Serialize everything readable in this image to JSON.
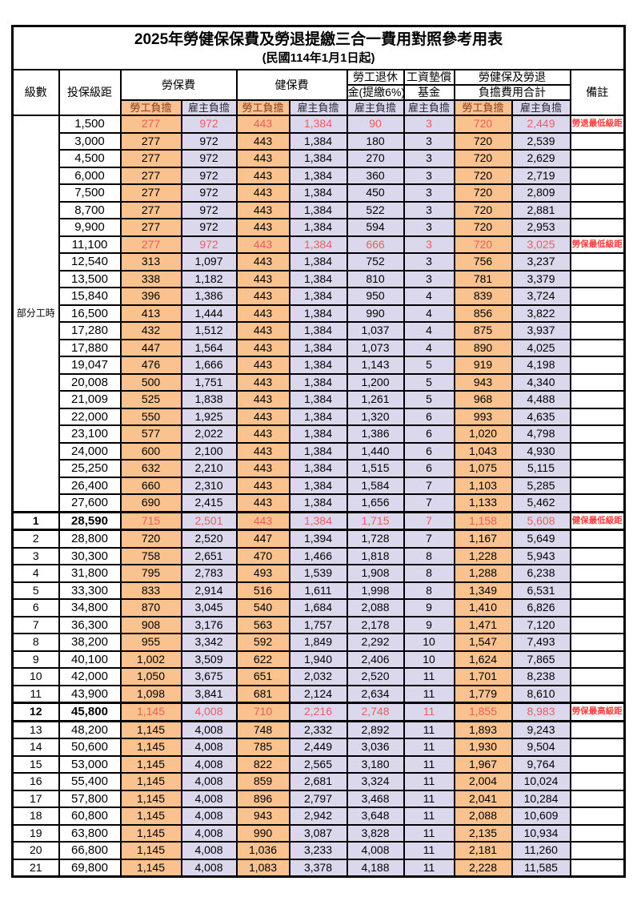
{
  "title": "2025年勞健保保費及勞退提繳三合一費用對照參考用表",
  "subtitle": "(民國114年1月1日起)",
  "header": {
    "level": "級數",
    "bracket": "投保級距",
    "labor_ins": "勞保費",
    "health_ins": "健保費",
    "pension_line1": "勞工退休",
    "pension_line2": "金(提繳6%)",
    "wage_fund_line1": "工資墊償",
    "wage_fund_line2": "基金",
    "total_line1": "勞健保及勞退",
    "total_line2": "負擔費用合計",
    "note": "備註",
    "employee_share": "勞工負擔",
    "employer_share": "雇主負擔"
  },
  "part_time_label": "部分工時",
  "colors": {
    "orange": "#F9C28E",
    "lavender": "#DBD8EE",
    "red_value": "#EE5D5D",
    "red_note": "#FB3B3B",
    "header_orange_text": "#8C3A1E",
    "header_lavender_text": "#2B2B3A",
    "border": "#000000"
  },
  "rows": [
    {
      "level": "",
      "bracket": "1,500",
      "values": [
        "277",
        "972",
        "443",
        "1,384",
        "90",
        "3",
        "720",
        "2,449"
      ],
      "note": "勞退最低級距",
      "red": true,
      "bold": false,
      "thick": false
    },
    {
      "level": "",
      "bracket": "3,000",
      "values": [
        "277",
        "972",
        "443",
        "1,384",
        "180",
        "3",
        "720",
        "2,539"
      ],
      "note": "",
      "red": false,
      "bold": false,
      "thick": false
    },
    {
      "level": "",
      "bracket": "4,500",
      "values": [
        "277",
        "972",
        "443",
        "1,384",
        "270",
        "3",
        "720",
        "2,629"
      ],
      "note": "",
      "red": false,
      "bold": false,
      "thick": false
    },
    {
      "level": "",
      "bracket": "6,000",
      "values": [
        "277",
        "972",
        "443",
        "1,384",
        "360",
        "3",
        "720",
        "2,719"
      ],
      "note": "",
      "red": false,
      "bold": false,
      "thick": false
    },
    {
      "level": "",
      "bracket": "7,500",
      "values": [
        "277",
        "972",
        "443",
        "1,384",
        "450",
        "3",
        "720",
        "2,809"
      ],
      "note": "",
      "red": false,
      "bold": false,
      "thick": false
    },
    {
      "level": "",
      "bracket": "8,700",
      "values": [
        "277",
        "972",
        "443",
        "1,384",
        "522",
        "3",
        "720",
        "2,881"
      ],
      "note": "",
      "red": false,
      "bold": false,
      "thick": false
    },
    {
      "level": "",
      "bracket": "9,900",
      "values": [
        "277",
        "972",
        "443",
        "1,384",
        "594",
        "3",
        "720",
        "2,953"
      ],
      "note": "",
      "red": false,
      "bold": false,
      "thick": false
    },
    {
      "level": "",
      "bracket": "11,100",
      "values": [
        "277",
        "972",
        "443",
        "1,384",
        "666",
        "3",
        "720",
        "3,025"
      ],
      "note": "勞保最低級距",
      "red": true,
      "bold": false,
      "thick": false
    },
    {
      "level": "",
      "bracket": "12,540",
      "values": [
        "313",
        "1,097",
        "443",
        "1,384",
        "752",
        "3",
        "756",
        "3,237"
      ],
      "note": "",
      "red": false,
      "bold": false,
      "thick": false
    },
    {
      "level": "",
      "bracket": "13,500",
      "values": [
        "338",
        "1,182",
        "443",
        "1,384",
        "810",
        "3",
        "781",
        "3,379"
      ],
      "note": "",
      "red": false,
      "bold": false,
      "thick": false
    },
    {
      "level": "",
      "bracket": "15,840",
      "values": [
        "396",
        "1,386",
        "443",
        "1,384",
        "950",
        "4",
        "839",
        "3,724"
      ],
      "note": "",
      "red": false,
      "bold": false,
      "thick": false
    },
    {
      "level": "",
      "bracket": "16,500",
      "values": [
        "413",
        "1,444",
        "443",
        "1,384",
        "990",
        "4",
        "856",
        "3,822"
      ],
      "note": "",
      "red": false,
      "bold": false,
      "thick": false
    },
    {
      "level": "",
      "bracket": "17,280",
      "values": [
        "432",
        "1,512",
        "443",
        "1,384",
        "1,037",
        "4",
        "875",
        "3,937"
      ],
      "note": "",
      "red": false,
      "bold": false,
      "thick": false
    },
    {
      "level": "",
      "bracket": "17,880",
      "values": [
        "447",
        "1,564",
        "443",
        "1,384",
        "1,073",
        "4",
        "890",
        "4,025"
      ],
      "note": "",
      "red": false,
      "bold": false,
      "thick": false
    },
    {
      "level": "",
      "bracket": "19,047",
      "values": [
        "476",
        "1,666",
        "443",
        "1,384",
        "1,143",
        "5",
        "919",
        "4,198"
      ],
      "note": "",
      "red": false,
      "bold": false,
      "thick": false
    },
    {
      "level": "",
      "bracket": "20,008",
      "values": [
        "500",
        "1,751",
        "443",
        "1,384",
        "1,200",
        "5",
        "943",
        "4,340"
      ],
      "note": "",
      "red": false,
      "bold": false,
      "thick": false
    },
    {
      "level": "",
      "bracket": "21,009",
      "values": [
        "525",
        "1,838",
        "443",
        "1,384",
        "1,261",
        "5",
        "968",
        "4,488"
      ],
      "note": "",
      "red": false,
      "bold": false,
      "thick": false
    },
    {
      "level": "",
      "bracket": "22,000",
      "values": [
        "550",
        "1,925",
        "443",
        "1,384",
        "1,320",
        "6",
        "993",
        "4,635"
      ],
      "note": "",
      "red": false,
      "bold": false,
      "thick": false
    },
    {
      "level": "",
      "bracket": "23,100",
      "values": [
        "577",
        "2,022",
        "443",
        "1,384",
        "1,386",
        "6",
        "1,020",
        "4,798"
      ],
      "note": "",
      "red": false,
      "bold": false,
      "thick": false
    },
    {
      "level": "",
      "bracket": "24,000",
      "values": [
        "600",
        "2,100",
        "443",
        "1,384",
        "1,440",
        "6",
        "1,043",
        "4,930"
      ],
      "note": "",
      "red": false,
      "bold": false,
      "thick": false
    },
    {
      "level": "",
      "bracket": "25,250",
      "values": [
        "632",
        "2,210",
        "443",
        "1,384",
        "1,515",
        "6",
        "1,075",
        "5,115"
      ],
      "note": "",
      "red": false,
      "bold": false,
      "thick": false
    },
    {
      "level": "",
      "bracket": "26,400",
      "values": [
        "660",
        "2,310",
        "443",
        "1,384",
        "1,584",
        "7",
        "1,103",
        "5,285"
      ],
      "note": "",
      "red": false,
      "bold": false,
      "thick": false
    },
    {
      "level": "",
      "bracket": "27,600",
      "values": [
        "690",
        "2,415",
        "443",
        "1,384",
        "1,656",
        "7",
        "1,133",
        "5,462"
      ],
      "note": "",
      "red": false,
      "bold": false,
      "thick": false
    },
    {
      "level": "1",
      "bracket": "28,590",
      "values": [
        "715",
        "2,501",
        "443",
        "1,384",
        "1,715",
        "7",
        "1,158",
        "5,608"
      ],
      "note": "健保最低級距",
      "red": true,
      "bold": true,
      "thick": true
    },
    {
      "level": "2",
      "bracket": "28,800",
      "values": [
        "720",
        "2,520",
        "447",
        "1,394",
        "1,728",
        "7",
        "1,167",
        "5,649"
      ],
      "note": "",
      "red": false,
      "bold": false,
      "thick": false
    },
    {
      "level": "3",
      "bracket": "30,300",
      "values": [
        "758",
        "2,651",
        "470",
        "1,466",
        "1,818",
        "8",
        "1,228",
        "5,943"
      ],
      "note": "",
      "red": false,
      "bold": false,
      "thick": false
    },
    {
      "level": "4",
      "bracket": "31,800",
      "values": [
        "795",
        "2,783",
        "493",
        "1,539",
        "1,908",
        "8",
        "1,288",
        "6,238"
      ],
      "note": "",
      "red": false,
      "bold": false,
      "thick": false
    },
    {
      "level": "5",
      "bracket": "33,300",
      "values": [
        "833",
        "2,914",
        "516",
        "1,611",
        "1,998",
        "8",
        "1,349",
        "6,531"
      ],
      "note": "",
      "red": false,
      "bold": false,
      "thick": false
    },
    {
      "level": "6",
      "bracket": "34,800",
      "values": [
        "870",
        "3,045",
        "540",
        "1,684",
        "2,088",
        "9",
        "1,410",
        "6,826"
      ],
      "note": "",
      "red": false,
      "bold": false,
      "thick": false
    },
    {
      "level": "7",
      "bracket": "36,300",
      "values": [
        "908",
        "3,176",
        "563",
        "1,757",
        "2,178",
        "9",
        "1,471",
        "7,120"
      ],
      "note": "",
      "red": false,
      "bold": false,
      "thick": false
    },
    {
      "level": "8",
      "bracket": "38,200",
      "values": [
        "955",
        "3,342",
        "592",
        "1,849",
        "2,292",
        "10",
        "1,547",
        "7,493"
      ],
      "note": "",
      "red": false,
      "bold": false,
      "thick": false
    },
    {
      "level": "9",
      "bracket": "40,100",
      "values": [
        "1,002",
        "3,509",
        "622",
        "1,940",
        "2,406",
        "10",
        "1,624",
        "7,865"
      ],
      "note": "",
      "red": false,
      "bold": false,
      "thick": false
    },
    {
      "level": "10",
      "bracket": "42,000",
      "values": [
        "1,050",
        "3,675",
        "651",
        "2,032",
        "2,520",
        "11",
        "1,701",
        "8,238"
      ],
      "note": "",
      "red": false,
      "bold": false,
      "thick": false
    },
    {
      "level": "11",
      "bracket": "43,900",
      "values": [
        "1,098",
        "3,841",
        "681",
        "2,124",
        "2,634",
        "11",
        "1,779",
        "8,610"
      ],
      "note": "",
      "red": false,
      "bold": false,
      "thick": false
    },
    {
      "level": "12",
      "bracket": "45,800",
      "values": [
        "1,145",
        "4,008",
        "710",
        "2,216",
        "2,748",
        "11",
        "1,855",
        "8,983"
      ],
      "note": "勞保最高級距",
      "red": true,
      "bold": true,
      "thick": true
    },
    {
      "level": "13",
      "bracket": "48,200",
      "values": [
        "1,145",
        "4,008",
        "748",
        "2,332",
        "2,892",
        "11",
        "1,893",
        "9,243"
      ],
      "note": "",
      "red": false,
      "bold": false,
      "thick": false
    },
    {
      "level": "14",
      "bracket": "50,600",
      "values": [
        "1,145",
        "4,008",
        "785",
        "2,449",
        "3,036",
        "11",
        "1,930",
        "9,504"
      ],
      "note": "",
      "red": false,
      "bold": false,
      "thick": false
    },
    {
      "level": "15",
      "bracket": "53,000",
      "values": [
        "1,145",
        "4,008",
        "822",
        "2,565",
        "3,180",
        "11",
        "1,967",
        "9,764"
      ],
      "note": "",
      "red": false,
      "bold": false,
      "thick": false
    },
    {
      "level": "16",
      "bracket": "55,400",
      "values": [
        "1,145",
        "4,008",
        "859",
        "2,681",
        "3,324",
        "11",
        "2,004",
        "10,024"
      ],
      "note": "",
      "red": false,
      "bold": false,
      "thick": false
    },
    {
      "level": "17",
      "bracket": "57,800",
      "values": [
        "1,145",
        "4,008",
        "896",
        "2,797",
        "3,468",
        "11",
        "2,041",
        "10,284"
      ],
      "note": "",
      "red": false,
      "bold": false,
      "thick": false
    },
    {
      "level": "18",
      "bracket": "60,800",
      "values": [
        "1,145",
        "4,008",
        "943",
        "2,942",
        "3,648",
        "11",
        "2,088",
        "10,609"
      ],
      "note": "",
      "red": false,
      "bold": false,
      "thick": false
    },
    {
      "level": "19",
      "bracket": "63,800",
      "values": [
        "1,145",
        "4,008",
        "990",
        "3,087",
        "3,828",
        "11",
        "2,135",
        "10,934"
      ],
      "note": "",
      "red": false,
      "bold": false,
      "thick": false
    },
    {
      "level": "20",
      "bracket": "66,800",
      "values": [
        "1,145",
        "4,008",
        "1,036",
        "3,233",
        "4,008",
        "11",
        "2,181",
        "11,260"
      ],
      "note": "",
      "red": false,
      "bold": false,
      "thick": false
    },
    {
      "level": "21",
      "bracket": "69,800",
      "values": [
        "1,145",
        "4,008",
        "1,083",
        "3,378",
        "4,188",
        "11",
        "2,228",
        "11,585"
      ],
      "note": "",
      "red": false,
      "bold": false,
      "thick": false
    }
  ]
}
